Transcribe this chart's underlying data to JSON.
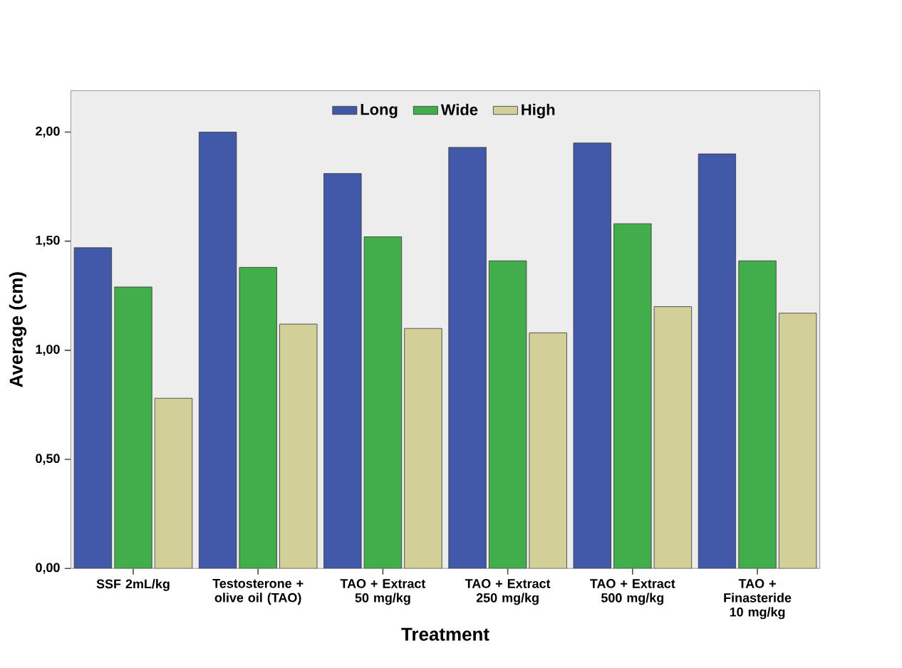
{
  "chart_data": {
    "type": "bar",
    "xlabel": "Treatment",
    "ylabel": "Average (cm)",
    "categories": [
      "SSF 2mL/kg",
      "Testosterone + olive oil (TAO)",
      "TAO + Extract 50 mg/kg",
      "TAO + Extract 250 mg/kg",
      "TAO + Extract 500 mg/kg",
      "TAO + Finasteride 10 mg/kg"
    ],
    "series": [
      {
        "name": "Long",
        "color": "#4159a8",
        "values": [
          1.47,
          2.0,
          1.81,
          1.93,
          1.95,
          1.9
        ]
      },
      {
        "name": "Wide",
        "color": "#41ad4b",
        "values": [
          1.29,
          1.38,
          1.52,
          1.41,
          1.58,
          1.41
        ]
      },
      {
        "name": "High",
        "color": "#d3cf98",
        "values": [
          0.78,
          1.12,
          1.1,
          1.08,
          1.2,
          1.17
        ]
      }
    ],
    "ylim": [
      0,
      2.19
    ],
    "yticks": [
      {
        "value": 0,
        "label": "0,00"
      },
      {
        "value": 0.5,
        "label": "0,50"
      },
      {
        "value": 1,
        "label": "1,00"
      },
      {
        "value": 1.5,
        "label": "1,50"
      },
      {
        "value": 2,
        "label": "2,00"
      }
    ],
    "legend": "top",
    "grid": false
  }
}
